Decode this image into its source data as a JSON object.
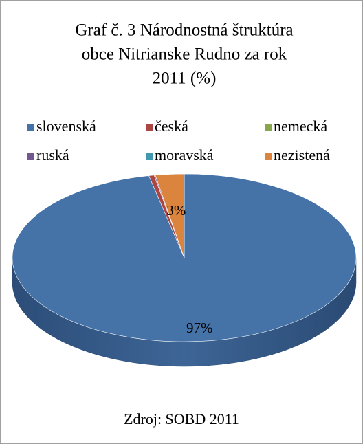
{
  "chart_data": {
    "type": "pie",
    "title": [
      "Graf č. 3 Národnostná štruktúra",
      "obce   Nitrianske Rudno za rok",
      "2011 (%)"
    ],
    "categories": [
      "slovenská",
      "česká",
      "nemecká",
      "ruská",
      "moravská",
      "nezistená"
    ],
    "values": [
      96.7,
      0.5,
      0,
      0.1,
      0,
      2.7
    ],
    "value_labels": [
      "97%",
      null,
      null,
      null,
      null,
      "3%"
    ],
    "colors": [
      "#4572a7",
      "#aa4643",
      "#89a54e",
      "#71588f",
      "#4198af",
      "#db843d"
    ],
    "legend": "top",
    "source": "Zdroj: SOBD 2011"
  }
}
